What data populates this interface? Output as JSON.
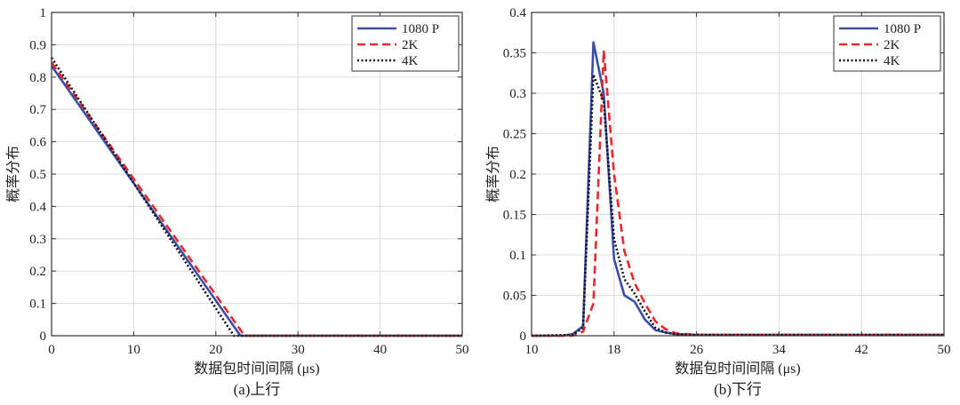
{
  "chart_data": [
    {
      "type": "line",
      "caption": "(a)上行",
      "xlabel": "数据包时间间隔 (μs)",
      "ylabel": "概率分布",
      "xlim": [
        0,
        50
      ],
      "ylim": [
        0,
        1
      ],
      "xticks": [
        0,
        10,
        20,
        30,
        40,
        50
      ],
      "yticks": [
        0,
        0.1,
        0.2,
        0.3,
        0.4,
        0.5,
        0.6,
        0.7,
        0.8,
        0.9,
        1
      ],
      "grid": true,
      "legend_position": "top-right",
      "series": [
        {
          "name": "1080 P",
          "color": "#3b4fa8",
          "dash": "solid",
          "x": [
            0,
            23,
            24,
            30,
            40,
            50
          ],
          "y": [
            0.835,
            0.0,
            0.0,
            0.0,
            0.0,
            0.0
          ]
        },
        {
          "name": "2K",
          "color": "#e8282d",
          "dash": "dashed",
          "x": [
            0,
            23.5,
            24,
            30,
            40,
            50
          ],
          "y": [
            0.845,
            0.0,
            0.0,
            0.0,
            0.0,
            0.0
          ]
        },
        {
          "name": "4K",
          "color": "#111111",
          "dash": "dotted",
          "x": [
            0,
            22.2,
            24,
            30,
            40,
            50
          ],
          "y": [
            0.86,
            0.0,
            0.0,
            0.0,
            0.0,
            0.0
          ]
        }
      ]
    },
    {
      "type": "line",
      "caption": "(b)下行",
      "xlabel": "数据包时间间隔 (μs)",
      "ylabel": "概率分布",
      "xlim": [
        10,
        50
      ],
      "ylim": [
        0,
        0.4
      ],
      "xticks": [
        10,
        18,
        26,
        34,
        42,
        50
      ],
      "yticks": [
        0,
        0.05,
        0.1,
        0.15,
        0.2,
        0.25,
        0.3,
        0.35,
        0.4
      ],
      "grid": true,
      "legend_position": "top-right",
      "series": [
        {
          "name": "1080 P",
          "color": "#3b4fa8",
          "dash": "solid",
          "x": [
            10,
            13,
            14,
            15,
            16,
            17,
            18,
            19,
            20,
            21,
            22,
            23,
            24,
            26,
            30,
            34,
            38,
            42,
            46,
            50
          ],
          "y": [
            0,
            0,
            0.002,
            0.012,
            0.363,
            0.3,
            0.095,
            0.05,
            0.042,
            0.02,
            0.007,
            0.004,
            0.002,
            0.001,
            0.001,
            0.001,
            0.001,
            0.001,
            0.001,
            0.001
          ]
        },
        {
          "name": "2K",
          "color": "#e8282d",
          "dash": "dashed",
          "x": [
            10,
            14,
            15,
            16,
            17,
            18,
            19,
            20,
            21,
            22,
            23,
            24,
            26,
            30,
            34,
            38,
            42,
            46,
            50
          ],
          "y": [
            0,
            0,
            0.005,
            0.04,
            0.353,
            0.2,
            0.105,
            0.065,
            0.04,
            0.018,
            0.008,
            0.003,
            0.001,
            0.001,
            0.001,
            0.001,
            0.001,
            0.001,
            0.001
          ]
        },
        {
          "name": "4K",
          "color": "#111111",
          "dash": "dotted",
          "x": [
            10,
            14,
            15,
            16,
            17,
            18,
            19,
            20,
            21,
            22,
            23,
            24,
            26,
            30,
            34,
            38,
            42,
            46,
            50
          ],
          "y": [
            0,
            0.001,
            0.01,
            0.323,
            0.29,
            0.12,
            0.07,
            0.052,
            0.03,
            0.01,
            0.004,
            0.002,
            0.001,
            0.001,
            0.001,
            0.001,
            0.001,
            0.001,
            0.001
          ]
        }
      ]
    }
  ]
}
